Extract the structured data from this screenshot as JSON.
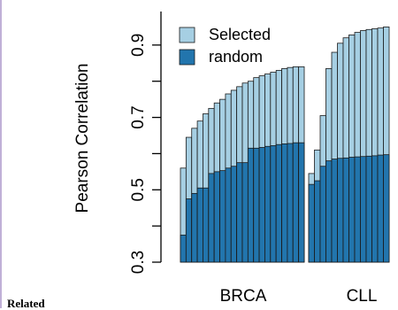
{
  "chart_data": {
    "type": "bar",
    "title": "",
    "ylabel": "Pearson Correlation",
    "xlabel": "",
    "ylim": [
      0.3,
      1.0
    ],
    "yticks": [
      0.3,
      0.5,
      0.7,
      0.9
    ],
    "colors": {
      "selected": "#a6cfe3",
      "random": "#2275ad"
    },
    "legend": {
      "position": "top-left",
      "entries": [
        "Selected",
        "random"
      ]
    },
    "groups": [
      {
        "label": "BRCA",
        "selected": [
          0.56,
          0.645,
          0.67,
          0.69,
          0.71,
          0.725,
          0.74,
          0.75,
          0.765,
          0.775,
          0.785,
          0.795,
          0.8,
          0.81,
          0.815,
          0.82,
          0.825,
          0.83,
          0.835,
          0.838,
          0.84,
          0.84
        ],
        "random": [
          0.375,
          0.475,
          0.49,
          0.505,
          0.505,
          0.545,
          0.55,
          0.553,
          0.56,
          0.565,
          0.575,
          0.575,
          0.615,
          0.615,
          0.617,
          0.62,
          0.622,
          0.625,
          0.627,
          0.628,
          0.63,
          0.63
        ]
      },
      {
        "label": "CLL",
        "selected": [
          0.545,
          0.61,
          0.705,
          0.835,
          0.88,
          0.905,
          0.92,
          0.928,
          0.935,
          0.94,
          0.943,
          0.945,
          0.947,
          0.95
        ],
        "random": [
          0.515,
          0.525,
          0.565,
          0.58,
          0.585,
          0.587,
          0.588,
          0.59,
          0.591,
          0.592,
          0.593,
          0.594,
          0.596,
          0.597
        ]
      }
    ]
  },
  "page": {
    "corner_text": "Related"
  }
}
